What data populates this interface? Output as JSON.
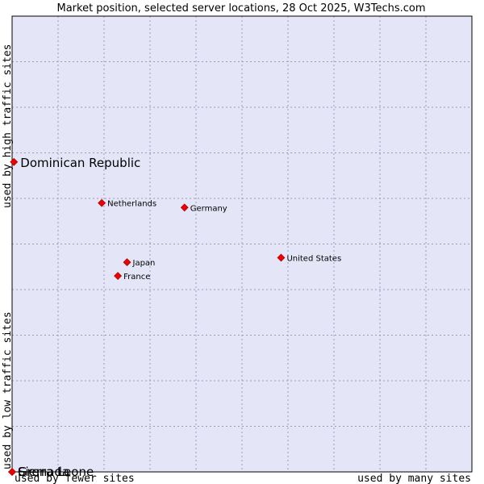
{
  "chart_data": {
    "type": "scatter",
    "title": "Market position, selected server locations, 28 Oct 2025, W3Techs.com",
    "xlabel_left": "used by fewer sites",
    "xlabel_right": "used by many sites",
    "ylabel_low": "used by low traffic sites",
    "ylabel_high": "used by high traffic sites",
    "xlim": [
      0,
      10
    ],
    "ylim": [
      0,
      10
    ],
    "grid": true,
    "colors": {
      "plot_bg": "#e4e6f8",
      "marker": "#ee0000",
      "marker_edge": "#990000",
      "grid": "#9a9ac0"
    },
    "points": [
      {
        "name": "Dominican Republic",
        "x": 0.04,
        "y": 6.8,
        "highlight": true
      },
      {
        "name": "Netherlands",
        "x": 1.95,
        "y": 5.9,
        "highlight": false
      },
      {
        "name": "Germany",
        "x": 3.75,
        "y": 5.8,
        "highlight": false
      },
      {
        "name": "United States",
        "x": 5.85,
        "y": 4.7,
        "highlight": false
      },
      {
        "name": "Japan",
        "x": 2.5,
        "y": 4.6,
        "highlight": false
      },
      {
        "name": "France",
        "x": 2.3,
        "y": 4.3,
        "highlight": false
      },
      {
        "name": "Grenada",
        "x": 0.0,
        "y": 0.0,
        "highlight": false
      },
      {
        "name": "Sierra Leone",
        "x": 0.0,
        "y": 0.0,
        "highlight": false
      }
    ]
  }
}
